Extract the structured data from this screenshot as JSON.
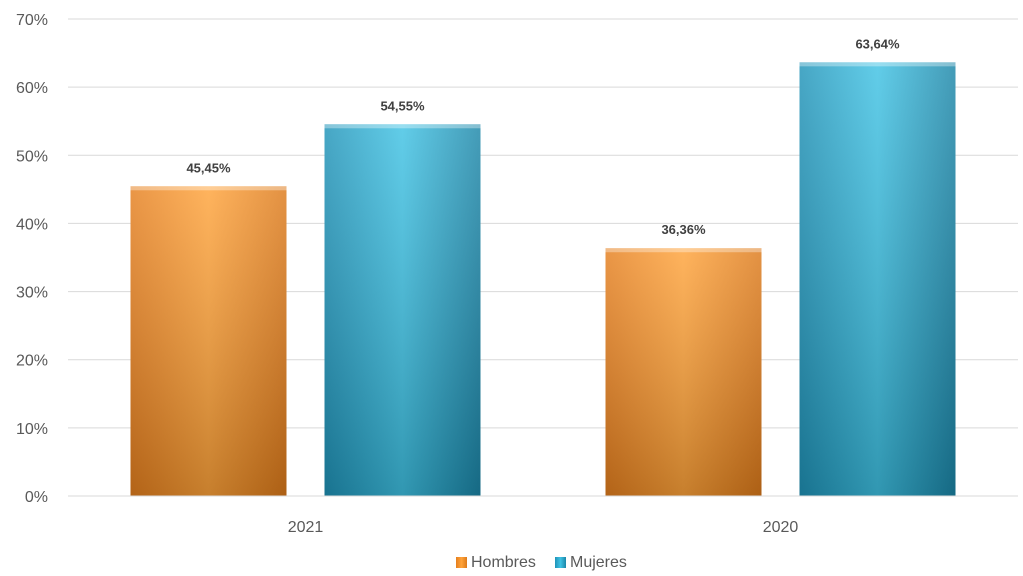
{
  "chart_data": {
    "type": "bar",
    "categories": [
      "2021",
      "2020"
    ],
    "series": [
      {
        "name": "Hombres",
        "values": [
          45.45,
          36.36
        ],
        "labels": [
          "45,45%",
          "36,36%"
        ],
        "color": "#F28C28"
      },
      {
        "name": "Mujeres",
        "values": [
          54.55,
          63.64
        ],
        "labels": [
          "54,55%",
          "63,64%"
        ],
        "color": "#2BA8CB"
      }
    ],
    "y_ticks": [
      "0%",
      "10%",
      "20%",
      "30%",
      "40%",
      "50%",
      "60%",
      "70%"
    ],
    "ylim": [
      0,
      70
    ],
    "grid": true,
    "legend_position": "bottom"
  }
}
